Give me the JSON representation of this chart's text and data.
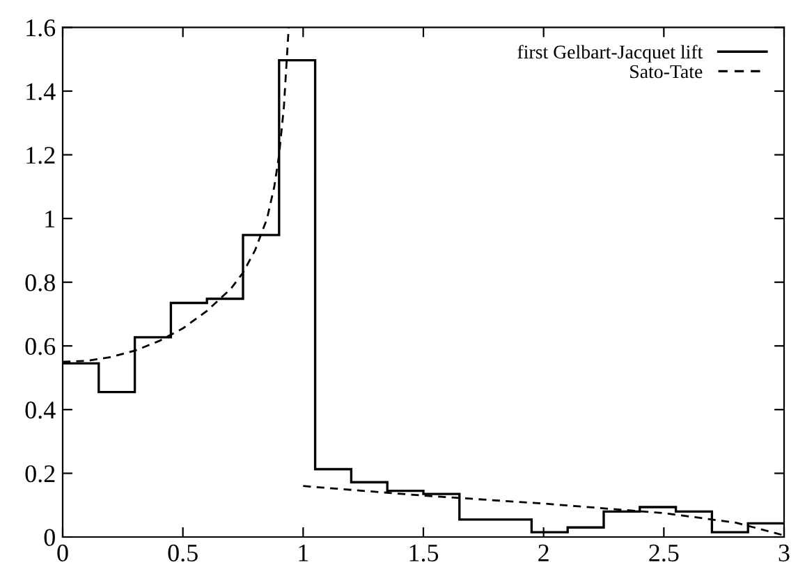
{
  "chart_data": {
    "type": "histogram",
    "series": [
      {
        "name": "first Gelbart-Jacquet lift",
        "color": "#000000",
        "line_style": "solid",
        "bins": [
          0,
          0.15,
          0.3,
          0.45,
          0.6,
          0.75,
          0.9,
          1.05,
          1.2,
          1.35,
          1.5,
          1.65,
          1.8,
          1.95,
          2.1,
          2.25,
          2.4,
          2.55,
          2.7,
          2.85,
          3.0
        ],
        "values": [
          0.545,
          0.455,
          0.627,
          0.735,
          0.748,
          0.948,
          1.497,
          0.213,
          0.172,
          0.145,
          0.135,
          0.055,
          0.055,
          0.015,
          0.03,
          0.08,
          0.094,
          0.08,
          0.015,
          0.043
        ]
      },
      {
        "name": "Sato-Tate",
        "type": "line",
        "color": "#000000",
        "line_style": "dashed",
        "x": [
          0,
          0.1,
          0.2,
          0.3,
          0.4,
          0.5,
          0.6,
          0.7,
          0.75,
          0.8,
          0.85,
          0.88,
          0.9,
          0.92,
          0.94,
          0.97,
          1.0,
          1.5,
          2.0,
          2.5,
          2.8,
          3.0
        ],
        "values": [
          0.55,
          0.553,
          0.565,
          0.585,
          0.615,
          0.655,
          0.71,
          0.78,
          0.83,
          0.9,
          1.0,
          1.1,
          1.2,
          1.35,
          1.6,
          null,
          0.16,
          0.13,
          0.105,
          0.075,
          0.045,
          0.005
        ]
      }
    ],
    "xlim": [
      0,
      3
    ],
    "ylim": [
      0,
      1.6
    ],
    "xticks": [
      0,
      0.5,
      1,
      1.5,
      2,
      2.5,
      3
    ],
    "yticks": [
      0,
      0.2,
      0.4,
      0.6,
      0.8,
      1,
      1.2,
      1.4,
      1.6
    ],
    "grid": false,
    "legend": "top right"
  }
}
